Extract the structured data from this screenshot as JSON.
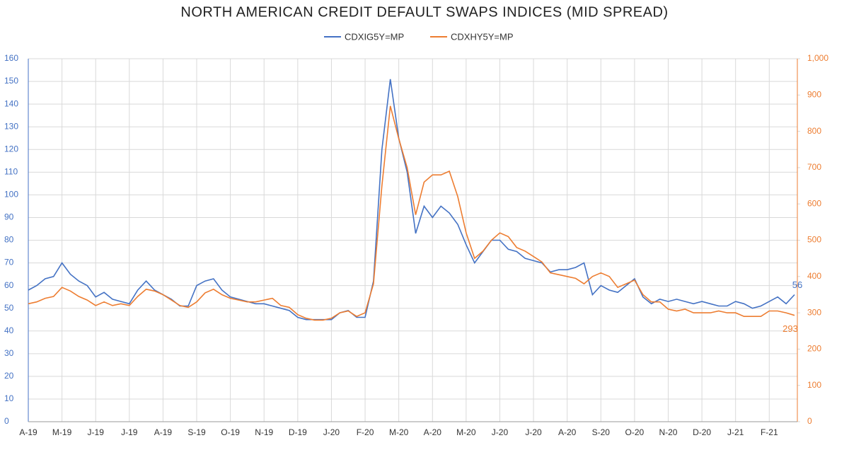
{
  "chart_data": {
    "type": "line",
    "title": "NORTH AMERICAN CREDIT DEFAULT SWAPS INDICES (MID SPREAD)",
    "categories": [
      "A-19",
      null,
      null,
      null,
      "M-19",
      null,
      null,
      null,
      "J-19",
      null,
      null,
      null,
      "J-19",
      null,
      null,
      null,
      "A-19",
      null,
      null,
      null,
      "S-19",
      null,
      null,
      null,
      "O-19",
      null,
      null,
      null,
      "N-19",
      null,
      null,
      null,
      "D-19",
      null,
      null,
      null,
      "J-20",
      null,
      null,
      null,
      "F-20",
      null,
      null,
      null,
      "M-20",
      null,
      null,
      null,
      "A-20",
      null,
      null,
      null,
      "M-20",
      null,
      null,
      null,
      "J-20",
      null,
      null,
      null,
      "J-20",
      null,
      null,
      null,
      "A-20",
      null,
      null,
      null,
      "S-20",
      null,
      null,
      null,
      "O-20",
      null,
      null,
      null,
      "N-20",
      null,
      null,
      null,
      "D-20",
      null,
      null,
      null,
      "J-21",
      null,
      null,
      null,
      "F-21",
      null,
      null,
      null
    ],
    "series": [
      {
        "name": "CDXIG5Y=MP",
        "color": "#4472c4",
        "axis": "y",
        "values": [
          58,
          60,
          63,
          64,
          70,
          65,
          62,
          60,
          55,
          57,
          54,
          53,
          52,
          58,
          62,
          58,
          56,
          54,
          51,
          51,
          60,
          62,
          63,
          58,
          55,
          54,
          53,
          52,
          52,
          51,
          50,
          49,
          46,
          45,
          45,
          45,
          45,
          48,
          49,
          46,
          46,
          62,
          120,
          151,
          125,
          110,
          83,
          95,
          90,
          95,
          92,
          87,
          78,
          70,
          75,
          80,
          80,
          76,
          75,
          72,
          71,
          70,
          66,
          67,
          67,
          68,
          70,
          56,
          60,
          58,
          57,
          60,
          63,
          55,
          52,
          54,
          53,
          54,
          53,
          52,
          53,
          52,
          51,
          51,
          53,
          52,
          50,
          51,
          53,
          55,
          52,
          56
        ]
      },
      {
        "name": "CDXHY5Y=MP",
        "color": "#ed7d31",
        "axis": "y2",
        "values": [
          325,
          330,
          340,
          345,
          370,
          360,
          345,
          335,
          320,
          330,
          320,
          325,
          320,
          345,
          365,
          360,
          350,
          335,
          320,
          315,
          330,
          355,
          365,
          350,
          340,
          335,
          330,
          330,
          335,
          340,
          320,
          315,
          295,
          285,
          280,
          280,
          285,
          300,
          305,
          290,
          300,
          380,
          650,
          870,
          780,
          700,
          570,
          660,
          680,
          680,
          690,
          620,
          520,
          450,
          470,
          500,
          520,
          510,
          480,
          470,
          455,
          440,
          410,
          405,
          400,
          395,
          380,
          400,
          410,
          400,
          370,
          380,
          390,
          350,
          330,
          330,
          310,
          305,
          310,
          300,
          300,
          300,
          305,
          300,
          300,
          290,
          290,
          290,
          305,
          305,
          300,
          293
        ]
      }
    ],
    "ylim": [
      0,
      160
    ],
    "yticks": [
      0,
      10,
      20,
      30,
      40,
      50,
      60,
      70,
      80,
      90,
      100,
      110,
      120,
      130,
      140,
      150,
      160
    ],
    "y2lim": [
      0,
      1000
    ],
    "y2ticks": [
      0,
      100,
      200,
      300,
      400,
      500,
      600,
      700,
      800,
      900,
      {
        "value": 1000,
        "label": "1,000"
      }
    ],
    "grid": true,
    "legend": "top"
  }
}
